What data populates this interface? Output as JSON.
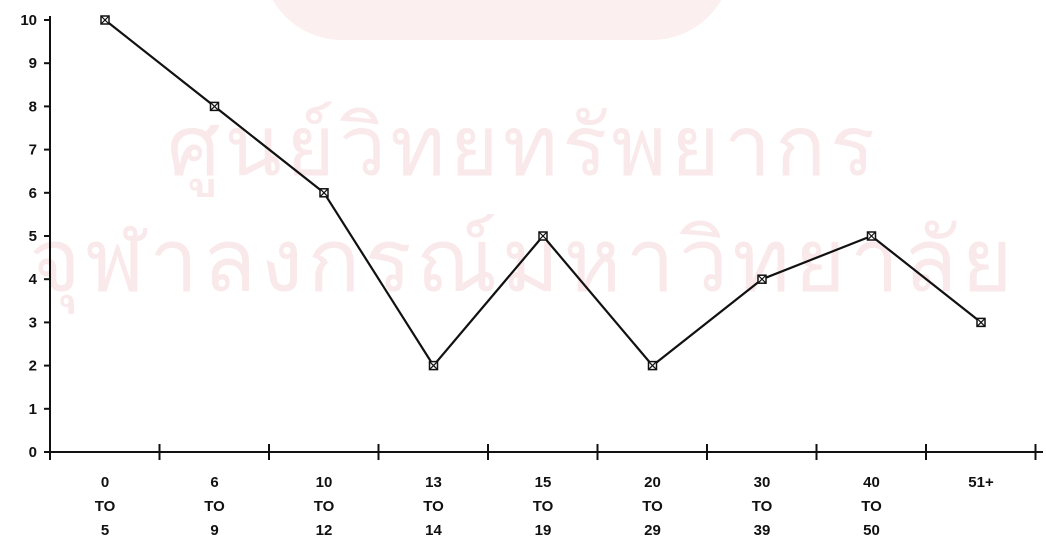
{
  "watermark": {
    "line1": "ศูนย์วิทยทรัพยากร",
    "line2": "จุฬาลงกรณ์มหาวิทยาลัย"
  },
  "chart_data": {
    "type": "line",
    "title": "",
    "xlabel": "",
    "ylabel": "",
    "categories": [
      [
        "0",
        "TO",
        "5"
      ],
      [
        "6",
        "TO",
        "9"
      ],
      [
        "10",
        "TO",
        "12"
      ],
      [
        "13",
        "TO",
        "14"
      ],
      [
        "15",
        "TO",
        "19"
      ],
      [
        "20",
        "TO",
        "29"
      ],
      [
        "30",
        "TO",
        "39"
      ],
      [
        "40",
        "TO",
        "50"
      ],
      [
        "51+"
      ]
    ],
    "values": [
      10,
      8,
      6,
      2,
      5,
      2,
      4,
      5,
      3
    ],
    "ylim": [
      0,
      10
    ],
    "yticks": [
      0,
      1,
      2,
      3,
      4,
      5,
      6,
      7,
      8,
      9,
      10
    ],
    "grid": false,
    "marker": "square-x",
    "line_color": "#111111"
  }
}
